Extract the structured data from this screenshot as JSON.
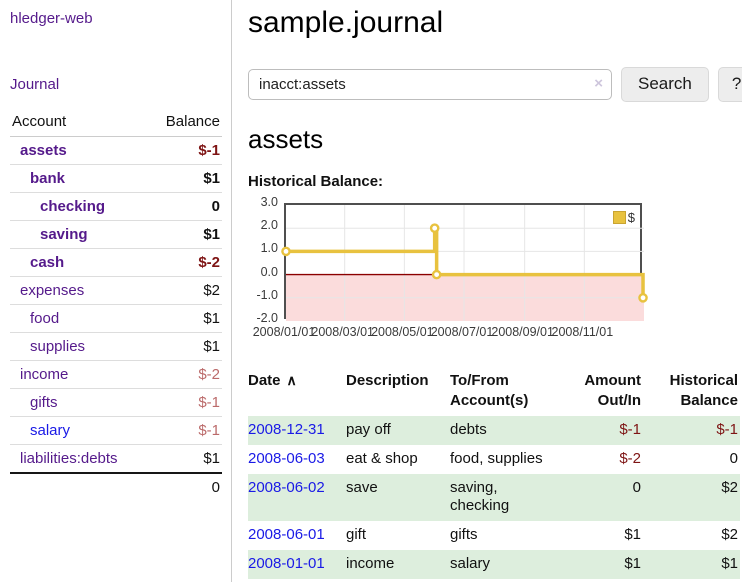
{
  "app": {
    "title": "hledger-web",
    "nav_journal": "Journal"
  },
  "sidebar": {
    "header": {
      "account": "Account",
      "balance": "Balance"
    },
    "accounts": [
      {
        "name": "assets",
        "level": 0,
        "bold": true,
        "balance": "$-1",
        "balance_style": "neg"
      },
      {
        "name": "bank",
        "level": 1,
        "bold": true,
        "balance": "$1",
        "balance_style": "pos"
      },
      {
        "name": "checking",
        "level": 2,
        "bold": true,
        "balance": "0",
        "balance_style": "pos"
      },
      {
        "name": "saving",
        "level": 2,
        "bold": true,
        "balance": "$1",
        "balance_style": "pos"
      },
      {
        "name": "cash",
        "level": 1,
        "bold": true,
        "balance": "$-2",
        "balance_style": "neg"
      },
      {
        "name": "expenses",
        "level": 0,
        "bold": false,
        "balance": "$2",
        "balance_style": "pos"
      },
      {
        "name": "food",
        "level": 1,
        "bold": false,
        "balance": "$1",
        "balance_style": "pos"
      },
      {
        "name": "supplies",
        "level": 1,
        "bold": false,
        "balance": "$1",
        "balance_style": "pos"
      },
      {
        "name": "income",
        "level": 0,
        "bold": false,
        "balance": "$-2",
        "balance_style": "neg-light"
      },
      {
        "name": "gifts",
        "level": 1,
        "bold": false,
        "balance": "$-1",
        "balance_style": "neg-light"
      },
      {
        "name": "salary",
        "level": 1,
        "bold": false,
        "balance": "$-1",
        "balance_style": "neg-light",
        "link_color": "blue"
      },
      {
        "name": "liabilities:debts",
        "level": 0,
        "bold": false,
        "balance": "$1",
        "balance_style": "pos"
      }
    ],
    "total": "0"
  },
  "main": {
    "title": "sample.journal",
    "search": {
      "value": "inacct:assets",
      "clear_icon": "×",
      "button": "Search",
      "help_button": "?"
    },
    "account_heading": "assets",
    "chart_label": "Historical Balance:"
  },
  "chart_data": {
    "type": "line",
    "title": "Historical Balance of assets",
    "step": true,
    "series": [
      {
        "name": "$",
        "color": "#e8c23f"
      }
    ],
    "points": [
      {
        "date": "2008-01-01",
        "day": 0,
        "value": 1
      },
      {
        "date": "2008-06-01",
        "day": 152,
        "value": 2
      },
      {
        "date": "2008-06-03",
        "day": 154,
        "value": 0
      },
      {
        "date": "2008-12-31",
        "day": 365,
        "value": -1
      }
    ],
    "x_domain_days": [
      0,
      366
    ],
    "x_ticks": [
      {
        "day": 0,
        "label": "2008/01/01"
      },
      {
        "day": 60,
        "label": "2008/03/01"
      },
      {
        "day": 121,
        "label": "2008/05/01"
      },
      {
        "day": 182,
        "label": "2008/07/01"
      },
      {
        "day": 244,
        "label": "2008/09/01"
      },
      {
        "day": 305,
        "label": "2008/11/01"
      }
    ],
    "y_ticks": [
      "3.0",
      "2.0",
      "1.0",
      "0.0",
      "-1.0",
      "-2.0"
    ],
    "ylim": [
      -2,
      3
    ],
    "grid": true,
    "legend_position": "top-right",
    "legend_label": "$",
    "negative_region_color": "#fbdcdc",
    "zero_line_color": "#8b0000",
    "grid_color": "#e6e6e6"
  },
  "table": {
    "headers": {
      "date": "Date",
      "sort_icon": "∧",
      "description": "Description",
      "accounts_line1": "To/From",
      "accounts_line2": "Account(s)",
      "amount_line1": "Amount",
      "amount_line2": "Out/In",
      "balance_line1": "Historical",
      "balance_line2": "Balance"
    },
    "rows": [
      {
        "date": "2008-12-31",
        "description": "pay off",
        "accounts": "debts",
        "amount": "$-1",
        "amount_neg": true,
        "balance": "$-1",
        "balance_neg": true
      },
      {
        "date": "2008-06-03",
        "description": "eat & shop",
        "accounts": "food, supplies",
        "amount": "$-2",
        "amount_neg": true,
        "balance": "0",
        "balance_neg": false
      },
      {
        "date": "2008-06-02",
        "description": "save",
        "accounts": "saving, checking",
        "amount": "0",
        "amount_neg": false,
        "balance": "$2",
        "balance_neg": false
      },
      {
        "date": "2008-06-01",
        "description": "gift",
        "accounts": "gifts",
        "amount": "$1",
        "amount_neg": false,
        "balance": "$2",
        "balance_neg": false
      },
      {
        "date": "2008-01-01",
        "description": "income",
        "accounts": "salary",
        "amount": "$1",
        "amount_neg": false,
        "balance": "$1",
        "balance_neg": false
      }
    ]
  },
  "colors": {
    "link_purple": "#551a8b",
    "link_blue": "#1a1ae6",
    "negative_red": "#7e1414",
    "negative_red_light": "#bb6a6a",
    "row_green": "#ddeedd",
    "series_gold": "#e8c23f"
  }
}
